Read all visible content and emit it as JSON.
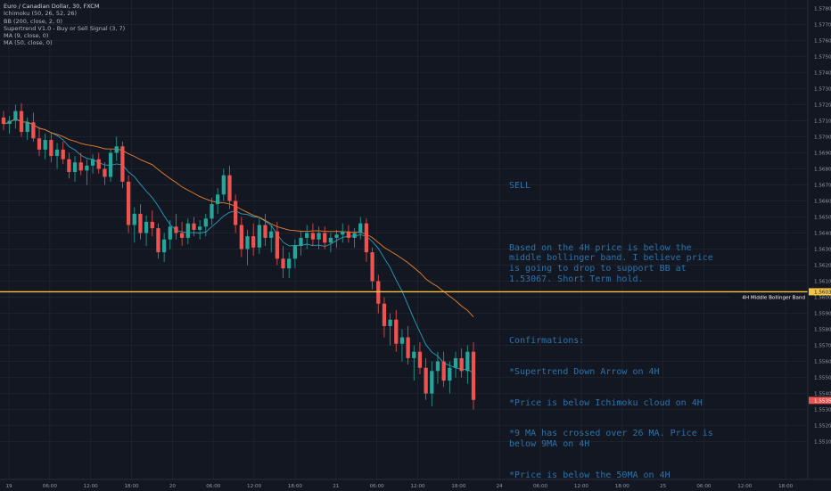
{
  "legend": {
    "title": "Euro / Canadian Dollar, 30, FXCM",
    "indicators": [
      "Ichimoku (50, 26, 52, 26)",
      "BB (200, close, 2, 0)",
      "Supertrend V1.0 - Buy or Sell Signal (3, 7)",
      "MA (9, close, 0)",
      "MA (50, close, 0)"
    ]
  },
  "note": {
    "heading": "SELL",
    "body": "Based on the 4H price is below the middle bollinger band. I believe price is going to drop to support BB at 1.53067. Short Term hold.",
    "confirm_heading": "Confirmations:",
    "confirmations": [
      "*Supertrend Down Arrow on 4H",
      "*Price is below Ichimoku cloud on 4H",
      "*9 MA has crossed over 26 MA. Price is below 9MA on 4H",
      "*Price is below the 50MA on 4H"
    ]
  },
  "chart_data": {
    "type": "candlestick",
    "instrument": "Euro / Canadian Dollar",
    "interval": "30",
    "ylim": [
      1.5497,
      1.5783
    ],
    "y_ticks": [
      "1.57800",
      "1.57700",
      "1.57600",
      "1.57500",
      "1.57400",
      "1.57300",
      "1.57200",
      "1.57100",
      "1.57000",
      "1.56900",
      "1.56800",
      "1.56700",
      "1.56600",
      "1.56500",
      "1.56400",
      "1.56300",
      "1.56200",
      "1.56100",
      "1.56000",
      "1.55900",
      "1.55800",
      "1.55700",
      "1.55600",
      "1.55500",
      "1.55400",
      "1.55300",
      "1.55200",
      "1.55100"
    ],
    "x_ticks": [
      "19",
      "06:00",
      "12:00",
      "18:00",
      "20",
      "06:00",
      "12:00",
      "18:00",
      "21",
      "06:00",
      "12:00",
      "18:00",
      "24",
      "06:00",
      "12:00",
      "18:00",
      "25",
      "06:00",
      "12:00",
      "18:00"
    ],
    "horizontal_line": {
      "price": 1.56034,
      "price_label": "1.56034",
      "label": "4H Middle Bollinger Band",
      "color": "#f5c542"
    },
    "last_price": {
      "price": 1.55357,
      "label": "1.55357",
      "color": "#ef5350"
    },
    "candles": [
      [
        1.5712,
        1.5716,
        1.5704,
        1.5708
      ],
      [
        1.5708,
        1.5713,
        1.5702,
        1.571
      ],
      [
        1.571,
        1.572,
        1.5705,
        1.5716
      ],
      [
        1.5716,
        1.5721,
        1.57,
        1.5703
      ],
      [
        1.5703,
        1.5712,
        1.5698,
        1.5709
      ],
      [
        1.5709,
        1.5715,
        1.5697,
        1.5699
      ],
      [
        1.5699,
        1.5706,
        1.5688,
        1.5692
      ],
      [
        1.5692,
        1.5702,
        1.5686,
        1.5698
      ],
      [
        1.5698,
        1.5703,
        1.5684,
        1.5688
      ],
      [
        1.5688,
        1.5696,
        1.568,
        1.5692
      ],
      [
        1.5692,
        1.5697,
        1.5683,
        1.5686
      ],
      [
        1.5686,
        1.569,
        1.5674,
        1.5678
      ],
      [
        1.5678,
        1.5688,
        1.5672,
        1.5684
      ],
      [
        1.5684,
        1.569,
        1.5676,
        1.5679
      ],
      [
        1.5679,
        1.5686,
        1.567,
        1.5682
      ],
      [
        1.5682,
        1.5689,
        1.5677,
        1.5686
      ],
      [
        1.5686,
        1.569,
        1.5677,
        1.568
      ],
      [
        1.568,
        1.5684,
        1.567,
        1.5675
      ],
      [
        1.5675,
        1.5692,
        1.5672,
        1.569
      ],
      [
        1.569,
        1.57,
        1.5685,
        1.5694
      ],
      [
        1.5694,
        1.5697,
        1.5668,
        1.5672
      ],
      [
        1.5672,
        1.5676,
        1.564,
        1.5645
      ],
      [
        1.5645,
        1.5656,
        1.5634,
        1.5652
      ],
      [
        1.5652,
        1.5658,
        1.5636,
        1.564
      ],
      [
        1.564,
        1.5651,
        1.5632,
        1.5647
      ],
      [
        1.5647,
        1.5654,
        1.5638,
        1.5643
      ],
      [
        1.5643,
        1.5646,
        1.5624,
        1.5628
      ],
      [
        1.5628,
        1.564,
        1.5622,
        1.5636
      ],
      [
        1.5636,
        1.5648,
        1.563,
        1.5644
      ],
      [
        1.5644,
        1.5652,
        1.5636,
        1.564
      ],
      [
        1.564,
        1.5647,
        1.5632,
        1.5637
      ],
      [
        1.5637,
        1.5649,
        1.5633,
        1.5646
      ],
      [
        1.5646,
        1.565,
        1.5638,
        1.5642
      ],
      [
        1.5642,
        1.5648,
        1.5636,
        1.5644
      ],
      [
        1.5644,
        1.5652,
        1.5638,
        1.5649
      ],
      [
        1.5649,
        1.5662,
        1.5645,
        1.5658
      ],
      [
        1.5658,
        1.5668,
        1.5652,
        1.5664
      ],
      [
        1.5664,
        1.568,
        1.566,
        1.5676
      ],
      [
        1.5676,
        1.5682,
        1.5655,
        1.566
      ],
      [
        1.566,
        1.5664,
        1.564,
        1.5645
      ],
      [
        1.5645,
        1.565,
        1.5625,
        1.563
      ],
      [
        1.563,
        1.5642,
        1.562,
        1.5638
      ],
      [
        1.5638,
        1.5646,
        1.5626,
        1.5631
      ],
      [
        1.5631,
        1.5649,
        1.5627,
        1.5645
      ],
      [
        1.5645,
        1.5652,
        1.5632,
        1.5637
      ],
      [
        1.5637,
        1.5645,
        1.5628,
        1.5641
      ],
      [
        1.5641,
        1.5647,
        1.562,
        1.5624
      ],
      [
        1.5624,
        1.5632,
        1.5612,
        1.5618
      ],
      [
        1.5618,
        1.5628,
        1.5612,
        1.5624
      ],
      [
        1.5624,
        1.5636,
        1.5618,
        1.5632
      ],
      [
        1.5632,
        1.5641,
        1.5626,
        1.5637
      ],
      [
        1.5637,
        1.5645,
        1.563,
        1.564
      ],
      [
        1.564,
        1.5646,
        1.5632,
        1.5636
      ],
      [
        1.5636,
        1.5644,
        1.563,
        1.564
      ],
      [
        1.564,
        1.5644,
        1.563,
        1.5634
      ],
      [
        1.5634,
        1.564,
        1.5628,
        1.5637
      ],
      [
        1.5637,
        1.5642,
        1.5631,
        1.5639
      ],
      [
        1.5639,
        1.5646,
        1.5634,
        1.5641
      ],
      [
        1.5641,
        1.5645,
        1.5634,
        1.5637
      ],
      [
        1.5637,
        1.5643,
        1.5631,
        1.564
      ],
      [
        1.564,
        1.565,
        1.5636,
        1.5646
      ],
      [
        1.5646,
        1.5649,
        1.5622,
        1.5628
      ],
      [
        1.5628,
        1.5631,
        1.5605,
        1.561
      ],
      [
        1.561,
        1.5614,
        1.559,
        1.5596
      ],
      [
        1.5596,
        1.56,
        1.5575,
        1.5582
      ],
      [
        1.5582,
        1.559,
        1.557,
        1.5586
      ],
      [
        1.5586,
        1.5592,
        1.5566,
        1.5571
      ],
      [
        1.5571,
        1.558,
        1.556,
        1.5575
      ],
      [
        1.5575,
        1.5582,
        1.5558,
        1.5562
      ],
      [
        1.5562,
        1.557,
        1.5548,
        1.5566
      ],
      [
        1.5566,
        1.5572,
        1.5552,
        1.5556
      ],
      [
        1.5556,
        1.5562,
        1.5536,
        1.554
      ],
      [
        1.554,
        1.556,
        1.5532,
        1.5554
      ],
      [
        1.5554,
        1.5566,
        1.5546,
        1.556
      ],
      [
        1.556,
        1.5566,
        1.5544,
        1.5548
      ],
      [
        1.5548,
        1.556,
        1.554,
        1.5556
      ],
      [
        1.5556,
        1.5566,
        1.555,
        1.5562
      ],
      [
        1.5562,
        1.5568,
        1.555,
        1.5554
      ],
      [
        1.5554,
        1.557,
        1.5546,
        1.5566
      ],
      [
        1.5566,
        1.5572,
        1.553,
        1.5536
      ]
    ]
  }
}
